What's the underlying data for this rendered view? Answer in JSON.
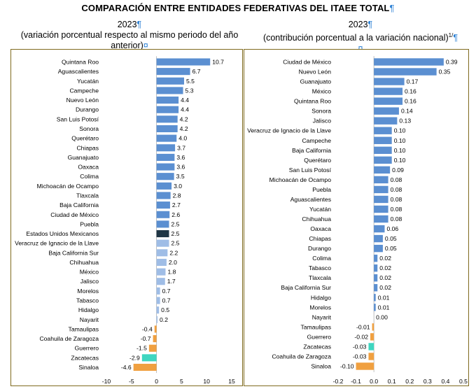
{
  "title": "COMPARACIÓN ENTRE ENTIDADES FEDERATIVAS DEL ITAEE TOTAL",
  "title_mark": "¶",
  "colors": {
    "blue": "#5b8fd1",
    "light_blue": "#9fbde6",
    "orange": "#f0a040",
    "teal": "#3fd6c0",
    "navy": "#1f3645",
    "frame": "#7f6a1e",
    "mark": "#2a7fd4"
  },
  "chart_data": [
    {
      "type": "bar",
      "orientation": "horizontal",
      "year": "2023",
      "year_mark": "¶",
      "subtitle_line1": "(variación porcentual respecto al mismo periodo del año",
      "subtitle_line2": "anterior)",
      "subtitle_mark": "¤",
      "xlim": [
        -10,
        15
      ],
      "ticks": [
        "-10",
        "-5",
        "0",
        "5",
        "10",
        "15"
      ],
      "tick_values": [
        -10,
        -5,
        0,
        5,
        10,
        15
      ],
      "categories": [
        "Quintana Roo",
        "Aguascalientes",
        "Yucatán",
        "Campeche",
        "Nuevo León",
        "Durango",
        "San Luis Potosí",
        "Sonora",
        "Querétaro",
        "Chiapas",
        "Guanajuato",
        "Oaxaca",
        "Colima",
        "Michoacán de Ocampo",
        "Tlaxcala",
        "Baja California",
        "Ciudad de México",
        "Puebla",
        "Estados Unidos Mexicanos",
        "Veracruz de Ignacio de la Llave",
        "Baja California Sur",
        "Chihuahua",
        "México",
        "Jalisco",
        "Morelos",
        "Tabasco",
        "Hidalgo",
        "Nayarit",
        "Tamaulipas",
        "Coahuila de Zaragoza",
        "Guerrero",
        "Zacatecas",
        "Sinaloa"
      ],
      "values": [
        10.7,
        6.7,
        5.5,
        5.3,
        4.4,
        4.4,
        4.2,
        4.2,
        4.0,
        3.7,
        3.6,
        3.6,
        3.5,
        3.0,
        2.8,
        2.7,
        2.6,
        2.5,
        2.5,
        2.5,
        2.2,
        2.0,
        1.8,
        1.7,
        0.7,
        0.7,
        0.5,
        0.2,
        -0.4,
        -0.7,
        -1.5,
        -2.9,
        -4.6
      ],
      "labels": [
        "10.7",
        "6.7",
        "5.5",
        "5.3",
        "4.4",
        "4.4",
        "4.2",
        "4.2",
        "4.0",
        "3.7",
        "3.6",
        "3.6",
        "3.5",
        "3.0",
        "2.8",
        "2.7",
        "2.6",
        "2.5",
        "2.5",
        "2.5",
        "2.2",
        "2.0",
        "1.8",
        "1.7",
        "0.7",
        "0.7",
        "0.5",
        "0.2",
        "-0.4",
        "-0.7",
        "-1.5",
        "-2.9",
        "-4.6"
      ],
      "colors": [
        "blue",
        "blue",
        "blue",
        "blue",
        "blue",
        "blue",
        "blue",
        "blue",
        "blue",
        "blue",
        "blue",
        "blue",
        "blue",
        "blue",
        "blue",
        "blue",
        "blue",
        "blue",
        "navy",
        "light_blue",
        "light_blue",
        "light_blue",
        "light_blue",
        "light_blue",
        "light_blue",
        "light_blue",
        "light_blue",
        "light_blue",
        "orange",
        "orange",
        "orange",
        "teal",
        "orange"
      ]
    },
    {
      "type": "bar",
      "orientation": "horizontal",
      "year": "2023",
      "year_mark": "¶",
      "subtitle_line1": "(contribución porcentual a la variación nacional)",
      "subtitle_sup": "1/",
      "subtitle_sup_mark": "¶",
      "subtitle_mark": "¤",
      "xlim": [
        -0.2,
        0.5
      ],
      "ticks": [
        "-0.2",
        "-0.1",
        "0.0",
        "0.1",
        "0.2",
        "0.3",
        "0.4",
        "0.5"
      ],
      "tick_values": [
        -0.2,
        -0.1,
        0,
        0.1,
        0.2,
        0.3,
        0.4,
        0.5
      ],
      "categories": [
        "Ciudad de México",
        "Nuevo León",
        "Guanajuato",
        "México",
        "Quintana Roo",
        "Sonora",
        "Jalisco",
        "Veracruz de Ignacio de la Llave",
        "Campeche",
        "Baja California",
        "Querétaro",
        "San Luis Potosí",
        "Michoacán de Ocampo",
        "Puebla",
        "Aguascalientes",
        "Yucatán",
        "Chihuahua",
        "Oaxaca",
        "Chiapas",
        "Durango",
        "Colima",
        "Tabasco",
        "Tlaxcala",
        "Baja California Sur",
        "Hidalgo",
        "Morelos",
        "Nayarit",
        "Tamaulipas",
        "Guerrero",
        "Zacatecas",
        "Coahuila de Zaragoza",
        "Sinaloa"
      ],
      "values": [
        0.39,
        0.35,
        0.17,
        0.16,
        0.16,
        0.14,
        0.13,
        0.1,
        0.1,
        0.1,
        0.1,
        0.09,
        0.08,
        0.08,
        0.08,
        0.08,
        0.08,
        0.06,
        0.05,
        0.05,
        0.02,
        0.02,
        0.02,
        0.02,
        0.01,
        0.01,
        0.0,
        -0.01,
        -0.02,
        -0.03,
        -0.03,
        -0.1
      ],
      "labels": [
        "0.39",
        "0.35",
        "0.17",
        "0.16",
        "0.16",
        "0.14",
        "0.13",
        "0.10",
        "0.10",
        "0.10",
        "0.10",
        "0.09",
        "0.08",
        "0.08",
        "0.08",
        "0.08",
        "0.08",
        "0.06",
        "0.05",
        "0.05",
        "0.02",
        "0.02",
        "0.02",
        "0.02",
        "0.01",
        "0.01",
        "0.00",
        "-0.01",
        "-0.02",
        "-0.03",
        "-0.03",
        "-0.10"
      ],
      "colors": [
        "blue",
        "blue",
        "blue",
        "blue",
        "blue",
        "blue",
        "blue",
        "blue",
        "blue",
        "blue",
        "blue",
        "blue",
        "blue",
        "blue",
        "blue",
        "blue",
        "blue",
        "blue",
        "blue",
        "blue",
        "blue",
        "blue",
        "blue",
        "blue",
        "blue",
        "blue",
        "blue",
        "orange",
        "orange",
        "teal",
        "orange",
        "orange"
      ]
    }
  ]
}
